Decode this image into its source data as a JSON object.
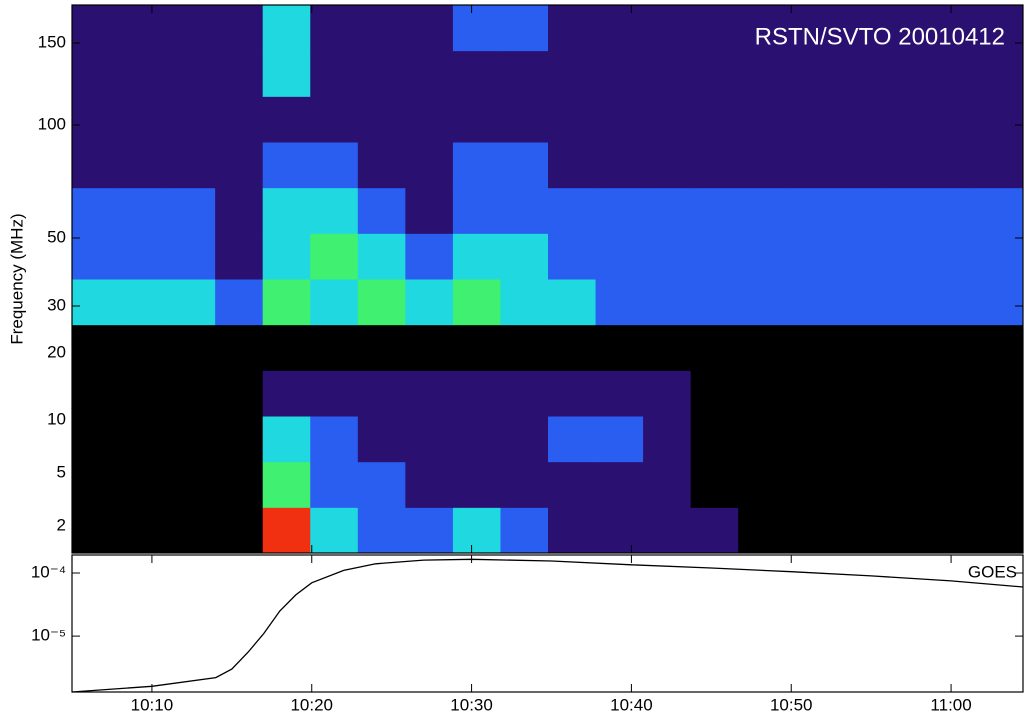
{
  "chart_data": [
    {
      "type": "heatmap",
      "title": "RSTN/SVTO 20010412",
      "y_label": "Frequency (MHz)",
      "xlim": [
        605,
        664.5
      ],
      "yticks": [
        150,
        100,
        50,
        30,
        20,
        10,
        5,
        2
      ],
      "colors": [
        "#000000",
        "#2a1070",
        "#2a5ef0",
        "#20d8e0",
        "#40f070",
        "#f03010"
      ],
      "z": [
        [
          1,
          1,
          1,
          1,
          3,
          1,
          1,
          1,
          2,
          2,
          1,
          1,
          1,
          1,
          1,
          1,
          1,
          1,
          1,
          1
        ],
        [
          1,
          1,
          1,
          1,
          3,
          1,
          1,
          1,
          1,
          1,
          1,
          1,
          1,
          1,
          1,
          1,
          1,
          1,
          1,
          1
        ],
        [
          1,
          1,
          1,
          1,
          1,
          1,
          1,
          1,
          1,
          1,
          1,
          1,
          1,
          1,
          1,
          1,
          1,
          1,
          1,
          1
        ],
        [
          1,
          1,
          1,
          1,
          2,
          2,
          1,
          1,
          2,
          2,
          1,
          1,
          1,
          1,
          1,
          1,
          1,
          1,
          1,
          1
        ],
        [
          2,
          2,
          2,
          1,
          3,
          3,
          2,
          1,
          2,
          2,
          2,
          2,
          2,
          2,
          2,
          2,
          2,
          2,
          2,
          2
        ],
        [
          2,
          2,
          2,
          1,
          3,
          4,
          3,
          2,
          3,
          3,
          2,
          2,
          2,
          2,
          2,
          2,
          2,
          2,
          2,
          2
        ],
        [
          3,
          3,
          3,
          2,
          4,
          3,
          4,
          3,
          4,
          3,
          3,
          2,
          2,
          2,
          2,
          2,
          2,
          2,
          2,
          2
        ],
        [
          0,
          0,
          0,
          0,
          0,
          0,
          0,
          0,
          0,
          0,
          0,
          0,
          0,
          0,
          0,
          0,
          0,
          0,
          0,
          0
        ],
        [
          0,
          0,
          0,
          0,
          1,
          1,
          1,
          1,
          1,
          1,
          1,
          1,
          1,
          0,
          0,
          0,
          0,
          0,
          0,
          0
        ],
        [
          0,
          0,
          0,
          0,
          3,
          2,
          1,
          1,
          1,
          1,
          2,
          2,
          1,
          0,
          0,
          0,
          0,
          0,
          0,
          0
        ],
        [
          0,
          0,
          0,
          0,
          4,
          2,
          2,
          1,
          1,
          1,
          1,
          1,
          1,
          0,
          0,
          0,
          0,
          0,
          0,
          0
        ],
        [
          0,
          0,
          0,
          0,
          5,
          3,
          2,
          2,
          3,
          2,
          1,
          1,
          1,
          1,
          0,
          0,
          0,
          0,
          0,
          0
        ]
      ]
    },
    {
      "type": "line",
      "label": "GOES",
      "color": "#000000",
      "log_y": true,
      "xlim": [
        605,
        664.5
      ],
      "ylim": [
        1.3e-06,
        0.000193
      ],
      "xticks": [
        {
          "value": 610,
          "label": "10:10"
        },
        {
          "value": 620,
          "label": "10:20"
        },
        {
          "value": 630,
          "label": "10:30"
        },
        {
          "value": 640,
          "label": "10:40"
        },
        {
          "value": 650,
          "label": "10:50"
        },
        {
          "value": 660,
          "label": "11:00"
        }
      ],
      "yticks": [
        {
          "value": 0.0001,
          "label": "10⁻⁴"
        },
        {
          "value": 1e-05,
          "label": "10⁻⁵"
        }
      ],
      "x": [
        605,
        610,
        614,
        615,
        616,
        617,
        618,
        619,
        620,
        622,
        624,
        627,
        630,
        635,
        640,
        645,
        650,
        655,
        660,
        664.5
      ],
      "values": [
        1.3e-06,
        1.6e-06,
        2.2e-06,
        3e-06,
        5.5e-06,
        1.1e-05,
        2.5e-05,
        4.5e-05,
        7e-05,
        0.00011,
        0.00014,
        0.00016,
        0.000165,
        0.000155,
        0.000135,
        0.00012,
        0.000105,
        9e-05,
        7.5e-05,
        6e-05
      ]
    }
  ]
}
